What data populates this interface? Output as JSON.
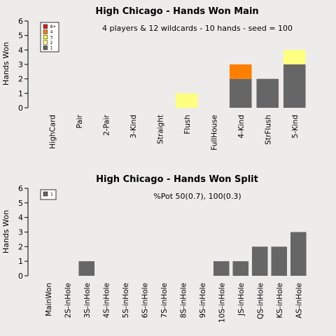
{
  "chart_data": [
    {
      "type": "bar",
      "stacked": true,
      "title": "High Chicago  - Hands Won Main",
      "subtitle": "4 players & 12 wildcards - 10 hands - seed = 100",
      "ylabel": "Hands Won",
      "ylim": [
        0,
        6
      ],
      "yticks": [
        0,
        1,
        2,
        3,
        4,
        5,
        6
      ],
      "categories": [
        "HighCard",
        "Pair",
        "2-Pair",
        "3-Kind",
        "Straight",
        "Flush",
        "FullHouse",
        "4-Kind",
        "StrFlush",
        "5-Kind"
      ],
      "legend": {
        "position": "top-left",
        "entries": [
          {
            "label": "8+",
            "color": "#dd1a1a"
          },
          {
            "label": "4",
            "color": "#ff7f00"
          },
          {
            "label": "3",
            "color": "#ffff33"
          },
          {
            "label": "2",
            "color": "#ffff80"
          },
          {
            "label": "1",
            "color": "#666666"
          }
        ]
      },
      "series": [
        {
          "key": "1",
          "color": "#666666",
          "values": [
            0,
            0,
            0,
            0,
            0,
            0,
            0,
            2,
            2,
            3
          ]
        },
        {
          "key": "2",
          "color": "#ffff80",
          "values": [
            0,
            0,
            0,
            0,
            0,
            1,
            0,
            0,
            0,
            1
          ]
        },
        {
          "key": "3",
          "color": "#ffff33",
          "values": [
            0,
            0,
            0,
            0,
            0,
            0,
            0,
            0,
            0,
            0
          ]
        },
        {
          "key": "4",
          "color": "#ff7f00",
          "values": [
            0,
            0,
            0,
            0,
            0,
            0,
            0,
            1,
            0,
            0
          ]
        },
        {
          "key": "8+",
          "color": "#dd1a1a",
          "values": [
            0,
            0,
            0,
            0,
            0,
            0,
            0,
            0,
            0,
            0
          ]
        }
      ]
    },
    {
      "type": "bar",
      "stacked": true,
      "title": "High Chicago  - Hands Won Split",
      "subtitle": "%Pot 50(0.7), 100(0.3)",
      "ylabel": "Hands Won",
      "ylim": [
        0,
        6
      ],
      "yticks": [
        0,
        1,
        2,
        3,
        4,
        5,
        6
      ],
      "categories": [
        "MainWon",
        "2S-inHole",
        "3S-inHole",
        "4S-inHole",
        "5S-inHole",
        "6S-inHole",
        "7S-inHole",
        "8S-inHole",
        "9S-inHole",
        "10S-inHole",
        "JS-inHole",
        "QS-inHole",
        "KS-inHole",
        "AS-inHole"
      ],
      "legend": {
        "position": "top-left",
        "entries": [
          {
            "label": "1",
            "color": "#666666"
          }
        ]
      },
      "series": [
        {
          "key": "1",
          "color": "#666666",
          "values": [
            0,
            0,
            1,
            0,
            0,
            0,
            0,
            0,
            0,
            1,
            1,
            2,
            2,
            3
          ]
        }
      ]
    }
  ]
}
